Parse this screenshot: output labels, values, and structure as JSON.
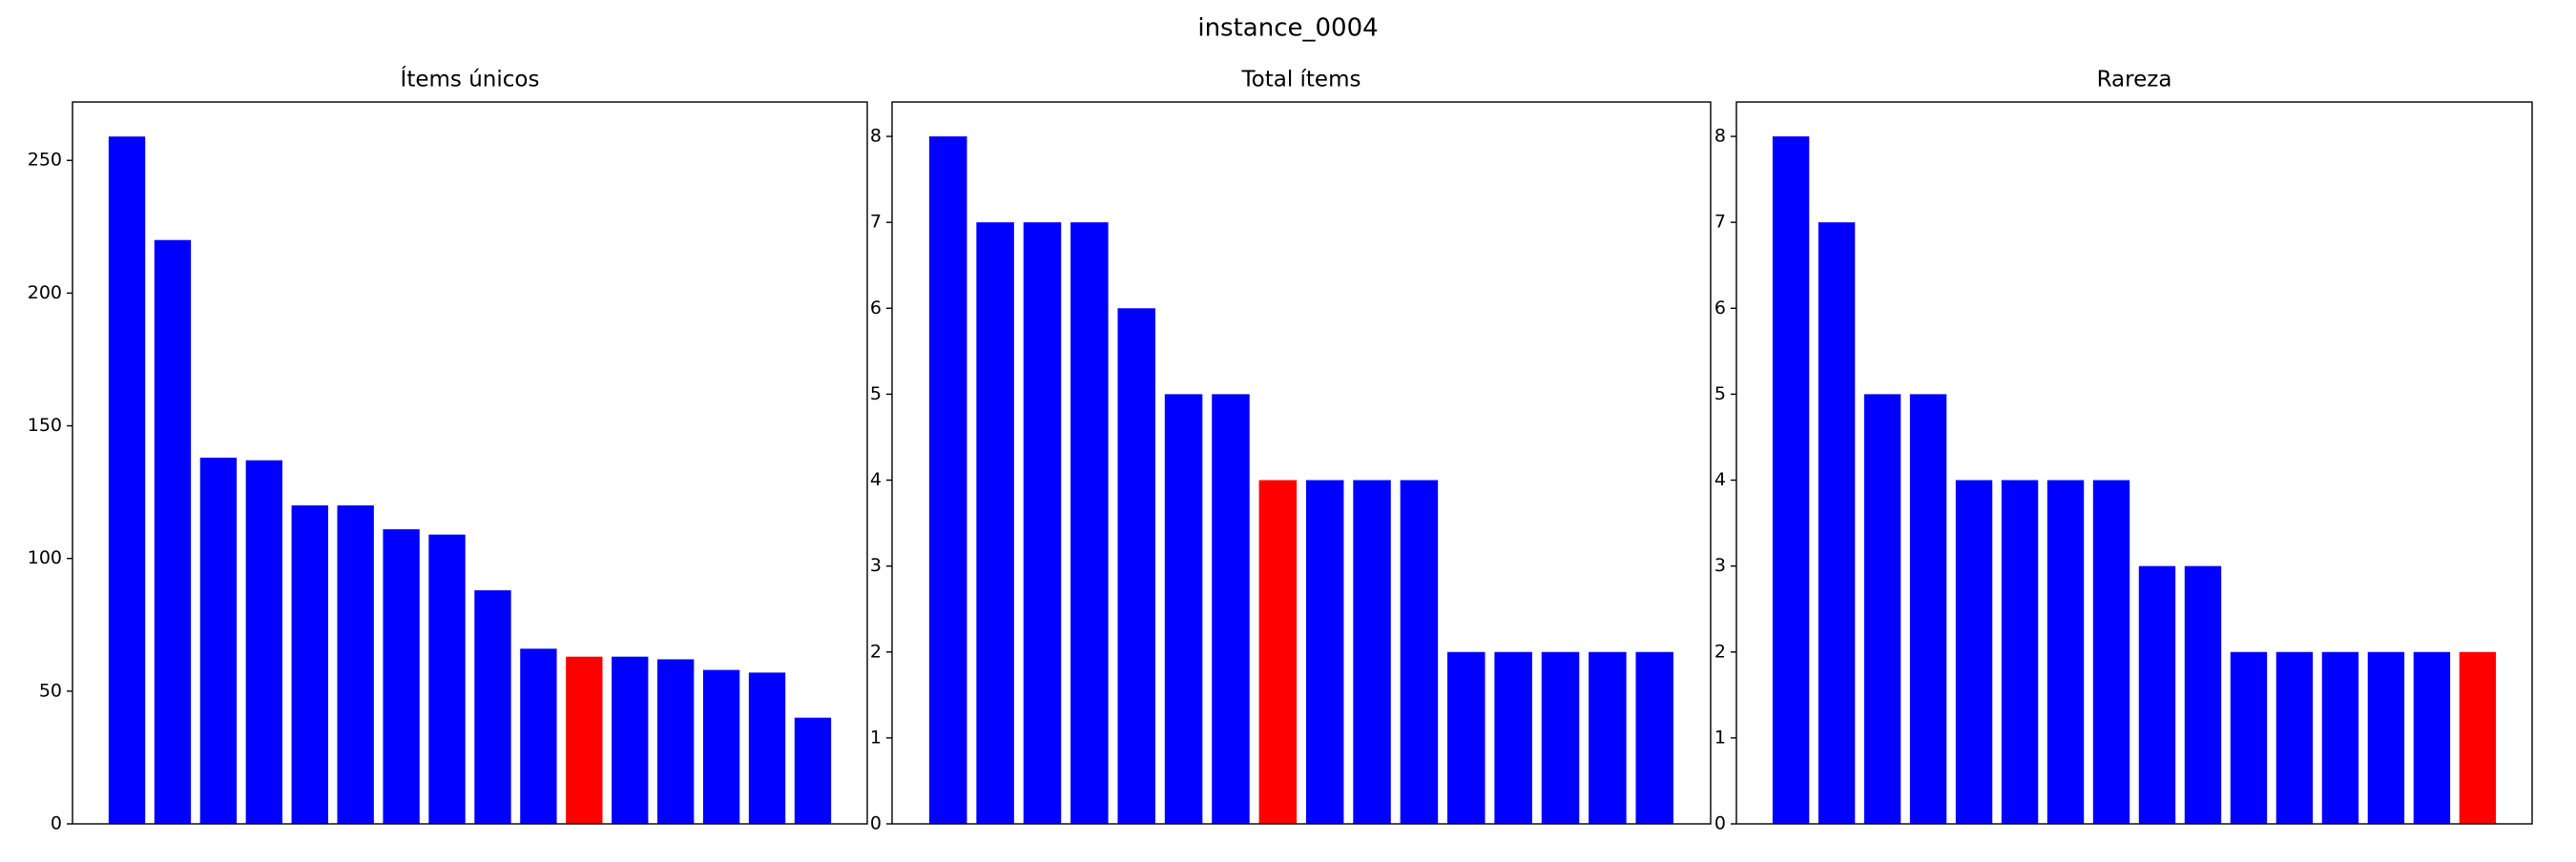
{
  "title": "instance_0004",
  "chart_data": [
    {
      "type": "bar",
      "title": "Ítems únicos",
      "categories": [
        null,
        null,
        null,
        null,
        null,
        null,
        null,
        null,
        null,
        null,
        null,
        null,
        null,
        null,
        null,
        null
      ],
      "values": [
        259,
        220,
        138,
        137,
        120,
        120,
        111,
        109,
        88,
        66,
        63,
        63,
        62,
        58,
        57,
        40
      ],
      "colors": [
        "#0000ff",
        "#0000ff",
        "#0000ff",
        "#0000ff",
        "#0000ff",
        "#0000ff",
        "#0000ff",
        "#0000ff",
        "#0000ff",
        "#0000ff",
        "#ff0000",
        "#0000ff",
        "#0000ff",
        "#0000ff",
        "#0000ff",
        "#0000ff"
      ],
      "ylim": [
        0,
        272
      ],
      "yticks": [
        0,
        50,
        100,
        150,
        200,
        250
      ]
    },
    {
      "type": "bar",
      "title": "Total ítems",
      "categories": [
        null,
        null,
        null,
        null,
        null,
        null,
        null,
        null,
        null,
        null,
        null,
        null,
        null,
        null,
        null,
        null
      ],
      "values": [
        8,
        7,
        7,
        7,
        6,
        5,
        5,
        4,
        4,
        4,
        4,
        2,
        2,
        2,
        2,
        2
      ],
      "colors": [
        "#0000ff",
        "#0000ff",
        "#0000ff",
        "#0000ff",
        "#0000ff",
        "#0000ff",
        "#0000ff",
        "#ff0000",
        "#0000ff",
        "#0000ff",
        "#0000ff",
        "#0000ff",
        "#0000ff",
        "#0000ff",
        "#0000ff",
        "#0000ff"
      ],
      "ylim": [
        0,
        8.4
      ],
      "yticks": [
        0,
        1,
        2,
        3,
        4,
        5,
        6,
        7,
        8
      ]
    },
    {
      "type": "bar",
      "title": "Rareza",
      "categories": [
        null,
        null,
        null,
        null,
        null,
        null,
        null,
        null,
        null,
        null,
        null,
        null,
        null,
        null,
        null,
        null
      ],
      "values": [
        8,
        7,
        5,
        5,
        4,
        4,
        4,
        4,
        3,
        3,
        2,
        2,
        2,
        2,
        2,
        2
      ],
      "colors": [
        "#0000ff",
        "#0000ff",
        "#0000ff",
        "#0000ff",
        "#0000ff",
        "#0000ff",
        "#0000ff",
        "#0000ff",
        "#0000ff",
        "#0000ff",
        "#0000ff",
        "#0000ff",
        "#0000ff",
        "#0000ff",
        "#0000ff",
        "#ff0000"
      ],
      "ylim": [
        0,
        8.4
      ],
      "yticks": [
        0,
        1,
        2,
        3,
        4,
        5,
        6,
        7,
        8
      ]
    }
  ]
}
